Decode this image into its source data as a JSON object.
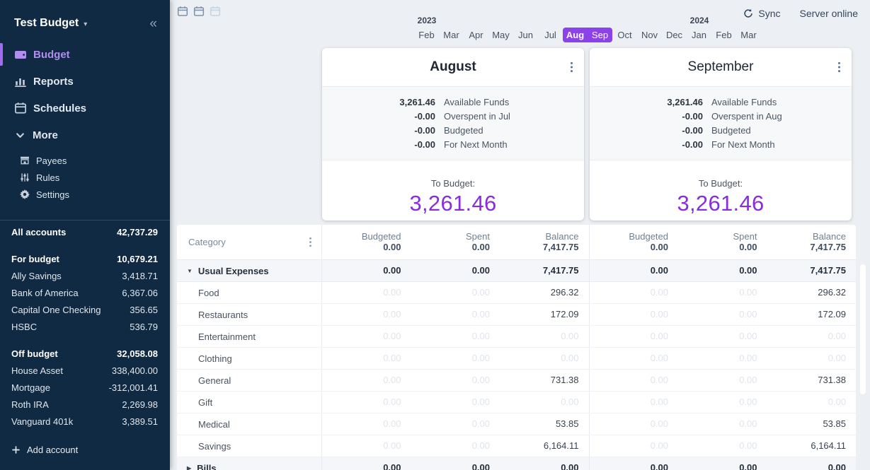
{
  "colors": {
    "sidebar_bg": "#102a43",
    "accent_purple": "#8a2be2",
    "selected_month_bg": "#8b42e8",
    "active_nav_text": "#b28df0",
    "page_bg": "#eceff3"
  },
  "sidebar": {
    "title": "Test Budget",
    "collapse_icon": "chevrons-left-icon",
    "nav": [
      {
        "label": "Budget",
        "icon": "wallet-icon",
        "active": true
      },
      {
        "label": "Reports",
        "icon": "bar-chart-icon",
        "active": false
      },
      {
        "label": "Schedules",
        "icon": "calendar-icon",
        "active": false
      }
    ],
    "more": {
      "label": "More",
      "icon": "chevron-down-icon",
      "items": [
        {
          "label": "Payees",
          "icon": "store-icon"
        },
        {
          "label": "Rules",
          "icon": "sliders-icon"
        },
        {
          "label": "Settings",
          "icon": "gear-icon"
        }
      ]
    },
    "accounts": {
      "all_label": "All accounts",
      "all_value": "42,737.29",
      "groups": [
        {
          "label": "For budget",
          "value": "10,679.21",
          "accounts": [
            {
              "name": "Ally Savings",
              "value": "3,418.71"
            },
            {
              "name": "Bank of America",
              "value": "6,367.06"
            },
            {
              "name": "Capital One Checking",
              "value": "356.65"
            },
            {
              "name": "HSBC",
              "value": "536.79"
            }
          ]
        },
        {
          "label": "Off budget",
          "value": "32,058.08",
          "accounts": [
            {
              "name": "House Asset",
              "value": "338,400.00"
            },
            {
              "name": "Mortgage",
              "value": "-312,001.41"
            },
            {
              "name": "Roth IRA",
              "value": "2,269.98"
            },
            {
              "name": "Vanguard 401k",
              "value": "3,389.51"
            }
          ]
        }
      ],
      "add_label": "Add account"
    }
  },
  "topbar": {
    "calendar_buttons": [
      "calendar-icon",
      "calendar-icon",
      "calendar-icon-disabled"
    ],
    "sync_label": "Sync",
    "server_status": "Server online"
  },
  "month_nav": {
    "years": [
      {
        "label": "2023",
        "month_index": 0
      },
      {
        "label": "2024",
        "month_index": 11
      }
    ],
    "months": [
      "Feb",
      "Mar",
      "Apr",
      "May",
      "Jun",
      "Jul",
      "Aug",
      "Sep",
      "Oct",
      "Nov",
      "Dec",
      "Jan",
      "Feb",
      "Mar"
    ],
    "selected_start": 6,
    "selected_end": 7
  },
  "month_cards": [
    {
      "title": "August",
      "bold_title": true,
      "summary": [
        {
          "value": "3,261.46",
          "label": "Available Funds"
        },
        {
          "value": "-0.00",
          "label": "Overspent in Jul"
        },
        {
          "value": "-0.00",
          "label": "Budgeted"
        },
        {
          "value": "-0.00",
          "label": "For Next Month"
        }
      ],
      "to_budget_label": "To Budget:",
      "to_budget_value": "3,261.46"
    },
    {
      "title": "September",
      "bold_title": false,
      "summary": [
        {
          "value": "3,261.46",
          "label": "Available Funds"
        },
        {
          "value": "-0.00",
          "label": "Overspent in Aug"
        },
        {
          "value": "-0.00",
          "label": "Budgeted"
        },
        {
          "value": "-0.00",
          "label": "For Next Month"
        }
      ],
      "to_budget_label": "To Budget:",
      "to_budget_value": "3,261.46"
    }
  ],
  "table": {
    "category_label": "Category",
    "columns": [
      "Budgeted",
      "Spent",
      "Balance"
    ],
    "month_totals": [
      [
        "0.00",
        "0.00",
        "7,417.75"
      ],
      [
        "0.00",
        "0.00",
        "7,417.75"
      ]
    ],
    "rows": [
      {
        "name": "Usual Expenses",
        "type": "group",
        "state": "expanded",
        "budgeted": "0.00",
        "spent": "0.00",
        "balance": "7,417.75"
      },
      {
        "name": "Food",
        "type": "item",
        "budgeted": "0.00",
        "spent": "0.00",
        "balance": "296.32"
      },
      {
        "name": "Restaurants",
        "type": "item",
        "budgeted": "0.00",
        "spent": "0.00",
        "balance": "172.09"
      },
      {
        "name": "Entertainment",
        "type": "item",
        "budgeted": "0.00",
        "spent": "0.00",
        "balance": "0.00"
      },
      {
        "name": "Clothing",
        "type": "item",
        "budgeted": "0.00",
        "spent": "0.00",
        "balance": "0.00"
      },
      {
        "name": "General",
        "type": "item",
        "budgeted": "0.00",
        "spent": "0.00",
        "balance": "731.38"
      },
      {
        "name": "Gift",
        "type": "item",
        "budgeted": "0.00",
        "spent": "0.00",
        "balance": "0.00"
      },
      {
        "name": "Medical",
        "type": "item",
        "budgeted": "0.00",
        "spent": "0.00",
        "balance": "53.85"
      },
      {
        "name": "Savings",
        "type": "item",
        "budgeted": "0.00",
        "spent": "0.00",
        "balance": "6,164.11"
      },
      {
        "name": "Bills",
        "type": "group",
        "state": "collapsed",
        "budgeted": "0.00",
        "spent": "0.00",
        "balance": "0.00"
      }
    ]
  }
}
